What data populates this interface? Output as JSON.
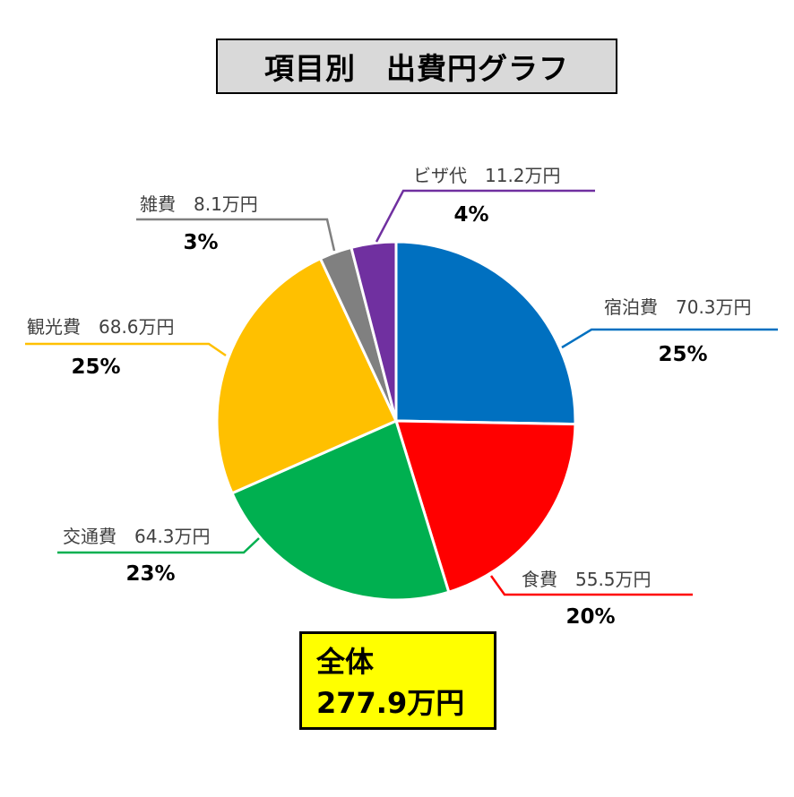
{
  "title": "項目別　出費円グラフ",
  "total": {
    "label": "全体",
    "value": "277.9万円"
  },
  "colors": {
    "accommodation": "#0070c0",
    "food": "#ff0000",
    "transport": "#00b050",
    "sightseeing": "#ffc000",
    "misc": "#808080",
    "visa": "#7030a0"
  },
  "chart_data": {
    "type": "pie",
    "title": "項目別　出費円グラフ",
    "slices": [
      {
        "key": "accommodation",
        "label": "宿泊費　70.3万円",
        "name": "宿泊費",
        "value": 70.3,
        "percent": "25%"
      },
      {
        "key": "food",
        "label": "食費　55.5万円",
        "name": "食費",
        "value": 55.5,
        "percent": "20%"
      },
      {
        "key": "transport",
        "label": "交通費　64.3万円",
        "name": "交通費",
        "value": 64.3,
        "percent": "23%"
      },
      {
        "key": "sightseeing",
        "label": "観光費　68.6万円",
        "name": "観光費",
        "value": 68.6,
        "percent": "25%"
      },
      {
        "key": "misc",
        "label": "雑費　8.1万円",
        "name": "雑費",
        "value": 8.1,
        "percent": "3%"
      },
      {
        "key": "visa",
        "label": "ビザ代　11.2万円",
        "name": "ビザ代",
        "value": 11.2,
        "percent": "4%"
      }
    ],
    "total": 277.9,
    "unit": "万円",
    "start_angle": "12 o'clock",
    "direction": "clockwise"
  }
}
